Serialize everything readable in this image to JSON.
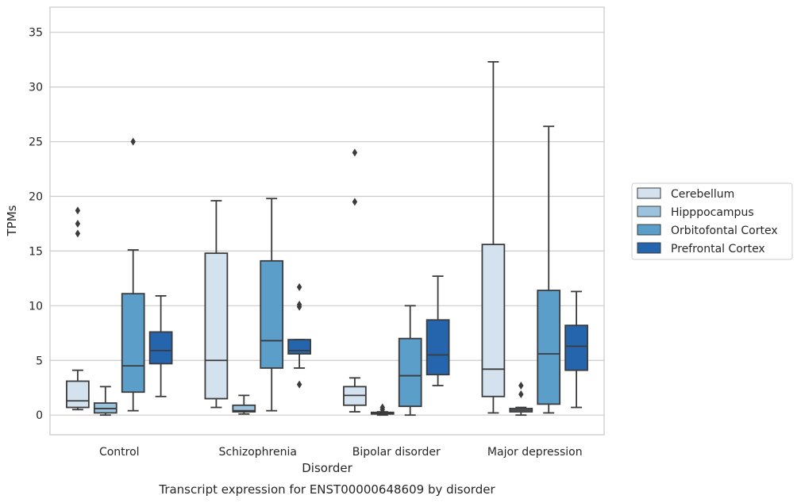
{
  "chart_data": {
    "type": "box",
    "title": "",
    "caption": "Transcript expression for ENST00000648609 by disorder",
    "xlabel": "Disorder",
    "ylabel": "TPMs",
    "ylim": [
      -1.8,
      37.3
    ],
    "yticks": [
      0,
      5,
      10,
      15,
      20,
      25,
      30,
      35
    ],
    "grid": "horizontal",
    "legend_position": "right",
    "categories": [
      "Control",
      "Schizophrenia",
      "Bipolar disorder",
      "Major depression"
    ],
    "series": [
      {
        "name": "Cerebellum",
        "color": "#d4e2ef",
        "boxes": [
          {
            "whisker_low": 0.5,
            "q1": 0.7,
            "median": 1.3,
            "q3": 3.1,
            "whisker_high": 4.1,
            "outliers": [
              16.6,
              17.5,
              18.7
            ]
          },
          {
            "whisker_low": 0.7,
            "q1": 1.5,
            "median": 5.0,
            "q3": 14.8,
            "whisker_high": 19.6,
            "outliers": []
          },
          {
            "whisker_low": 0.3,
            "q1": 0.9,
            "median": 1.8,
            "q3": 2.6,
            "whisker_high": 3.4,
            "outliers": [
              19.5,
              24.0
            ]
          },
          {
            "whisker_low": 0.2,
            "q1": 1.7,
            "median": 4.2,
            "q3": 15.6,
            "whisker_high": 32.3,
            "outliers": []
          }
        ]
      },
      {
        "name": "Hipppocampus",
        "color": "#9bc3de",
        "boxes": [
          {
            "whisker_low": 0.0,
            "q1": 0.2,
            "median": 0.6,
            "q3": 1.1,
            "whisker_high": 2.6,
            "outliers": []
          },
          {
            "whisker_low": 0.1,
            "q1": 0.3,
            "median": 0.4,
            "q3": 0.9,
            "whisker_high": 1.8,
            "outliers": []
          },
          {
            "whisker_low": 0.0,
            "q1": 0.1,
            "median": 0.15,
            "q3": 0.25,
            "whisker_high": 0.3,
            "outliers": [
              0.5,
              0.7
            ]
          },
          {
            "whisker_low": 0.0,
            "q1": 0.3,
            "median": 0.45,
            "q3": 0.6,
            "whisker_high": 0.7,
            "outliers": [
              1.9,
              2.7
            ]
          }
        ]
      },
      {
        "name": "Orbitofontal Cortex",
        "color": "#5a9ec9",
        "boxes": [
          {
            "whisker_low": 0.4,
            "q1": 2.1,
            "median": 4.5,
            "q3": 11.1,
            "whisker_high": 15.1,
            "outliers": [
              25.0
            ]
          },
          {
            "whisker_low": 0.4,
            "q1": 4.3,
            "median": 6.8,
            "q3": 14.1,
            "whisker_high": 19.8,
            "outliers": []
          },
          {
            "whisker_low": 0.0,
            "q1": 0.8,
            "median": 3.6,
            "q3": 7.0,
            "whisker_high": 10.0,
            "outliers": []
          },
          {
            "whisker_low": 0.2,
            "q1": 1.0,
            "median": 5.6,
            "q3": 11.4,
            "whisker_high": 26.4,
            "outliers": []
          }
        ]
      },
      {
        "name": "Prefrontal Cortex",
        "color": "#2565ad",
        "boxes": [
          {
            "whisker_low": 1.7,
            "q1": 4.7,
            "median": 5.9,
            "q3": 7.6,
            "whisker_high": 10.9,
            "outliers": []
          },
          {
            "whisker_low": 4.3,
            "q1": 5.6,
            "median": 5.9,
            "q3": 6.9,
            "whisker_high": 6.9,
            "outliers": [
              2.8,
              9.9,
              10.1,
              11.7
            ]
          },
          {
            "whisker_low": 2.7,
            "q1": 3.7,
            "median": 5.5,
            "q3": 8.7,
            "whisker_high": 12.7,
            "outliers": []
          },
          {
            "whisker_low": 0.7,
            "q1": 4.1,
            "median": 6.3,
            "q3": 8.2,
            "whisker_high": 11.3,
            "outliers": []
          }
        ]
      }
    ]
  }
}
